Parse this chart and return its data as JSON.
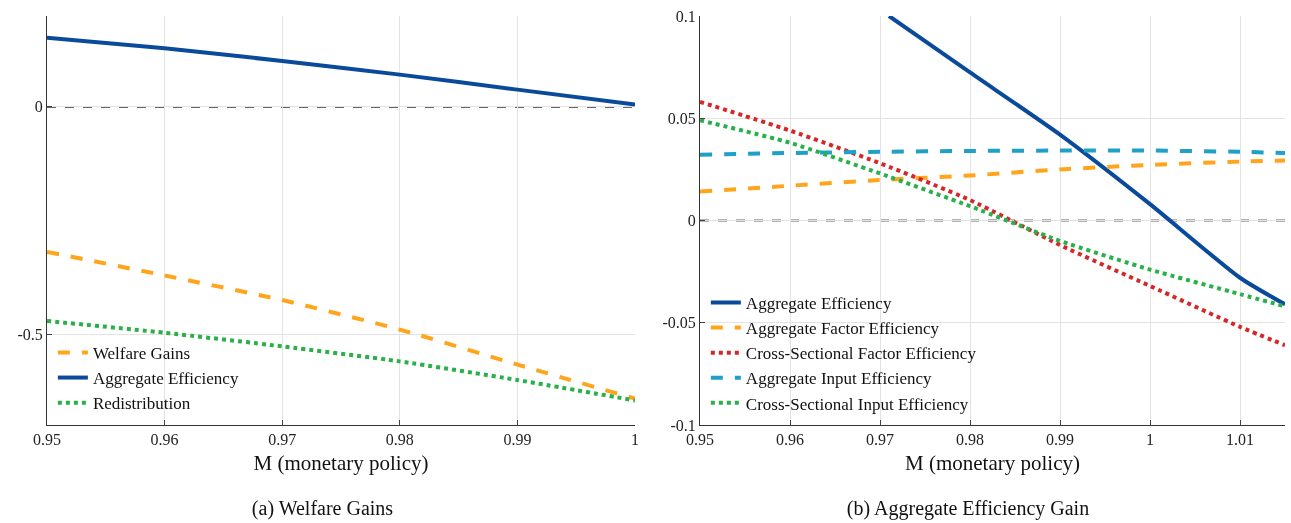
{
  "chart_data": [
    {
      "type": "line",
      "title": "(a) Welfare Gains",
      "xlabel": "M (monetary policy)",
      "x": [
        0.95,
        0.96,
        0.97,
        0.98,
        0.99,
        1.0
      ],
      "xlim": [
        0.95,
        1
      ],
      "xticks": [
        0.95,
        0.96,
        0.97,
        0.98,
        0.99,
        1
      ],
      "ylim": [
        -0.7,
        0.2
      ],
      "yticks": [
        -0.5,
        0
      ],
      "grid": true,
      "legend": "bottom left",
      "marker": "none",
      "ref_lines": [
        {
          "axis": "y",
          "value": 0,
          "color": "#666666",
          "line_style": "dashed"
        }
      ],
      "series": [
        {
          "name": "Welfare Gains",
          "color": "#ffa41b",
          "line_style": "dashed",
          "values": [
            -0.319,
            -0.371,
            -0.425,
            -0.49,
            -0.567,
            -0.642
          ]
        },
        {
          "name": "Aggregate Efficiency",
          "color": "#0a4a9a",
          "line_style": "solid",
          "values": [
            0.152,
            0.129,
            0.101,
            0.071,
            0.038,
            0.005
          ]
        },
        {
          "name": "Redistribution",
          "color": "#2ab04a",
          "line_style": "dotted",
          "values": [
            -0.471,
            -0.497,
            -0.527,
            -0.56,
            -0.601,
            -0.646
          ]
        }
      ]
    },
    {
      "type": "line",
      "title": "(b) Aggregate Efficiency Gain",
      "xlabel": "M (monetary policy)",
      "x": [
        0.95,
        0.96,
        0.97,
        0.98,
        0.99,
        1.0,
        1.01,
        1.015
      ],
      "xlim": [
        0.95,
        1.015
      ],
      "xticks": [
        0.95,
        0.96,
        0.97,
        0.98,
        0.99,
        1,
        1.01
      ],
      "ylim": [
        -0.1,
        0.1
      ],
      "yticks": [
        -0.1,
        -0.05,
        0,
        0.05,
        0.1
      ],
      "grid": true,
      "legend": "bottom left",
      "marker": "none",
      "ref_lines": [
        {
          "axis": "y",
          "value": 0,
          "color": "#666666",
          "line_style": "dashed"
        }
      ],
      "series": [
        {
          "name": "Aggregate Efficiency",
          "color": "#0a4a9a",
          "line_style": "solid",
          "x": [
            0.971,
            0.98,
            0.99,
            1.0,
            1.01,
            1.015
          ],
          "values": [
            0.1,
            0.0724,
            0.042,
            0.008,
            -0.028,
            -0.041
          ]
        },
        {
          "name": "Aggregate Factor Efficiency",
          "color": "#ffa41b",
          "line_style": "dashed",
          "values": [
            0.0142,
            0.017,
            0.0198,
            0.022,
            0.025,
            0.0272,
            0.0288,
            0.0294
          ]
        },
        {
          "name": "Cross-Sectional Factor Efficiency",
          "color": "#d62728",
          "line_style": "dotted",
          "values": [
            0.058,
            0.044,
            0.028,
            0.01,
            -0.012,
            -0.032,
            -0.052,
            -0.061
          ]
        },
        {
          "name": "Aggregate Input Efficiency",
          "color": "#1fa0c4",
          "line_style": "dashed",
          "values": [
            0.0322,
            0.033,
            0.0336,
            0.034,
            0.0342,
            0.0342,
            0.0336,
            0.033
          ]
        },
        {
          "name": "Cross-Sectional Input Efficiency",
          "color": "#2ab04a",
          "line_style": "dotted",
          "values": [
            0.049,
            0.038,
            0.023,
            0.007,
            -0.01,
            -0.024,
            -0.036,
            -0.042
          ]
        }
      ]
    }
  ]
}
